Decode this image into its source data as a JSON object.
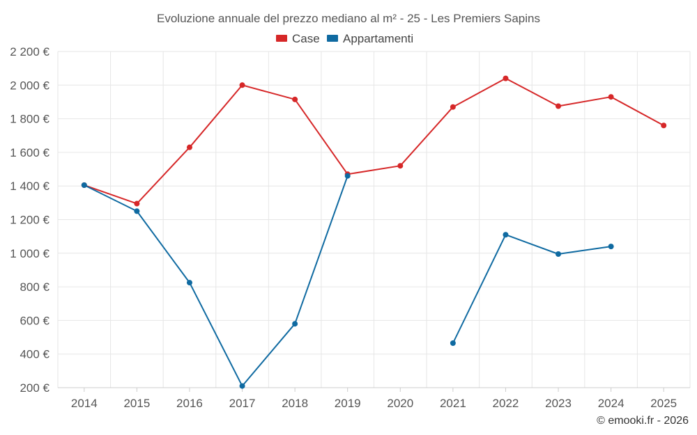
{
  "chart_data": {
    "type": "line",
    "title": "Evoluzione annuale del prezzo mediano al m² - 25 - Les Premiers Sapins",
    "xlabel": "",
    "ylabel": "",
    "categories": [
      "2014",
      "2015",
      "2016",
      "2017",
      "2018",
      "2019",
      "2020",
      "2021",
      "2022",
      "2023",
      "2024",
      "2025"
    ],
    "ylim": [
      200,
      2200
    ],
    "yticks": [
      200,
      400,
      600,
      800,
      1000,
      1200,
      1400,
      1600,
      1800,
      2000,
      2200
    ],
    "ytick_labels": [
      "200 €",
      "400 €",
      "600 €",
      "800 €",
      "1 000 €",
      "1 200 €",
      "1 400 €",
      "1 600 €",
      "1 800 €",
      "2 000 €",
      "2 200 €"
    ],
    "grid": true,
    "legend_position": "top-center",
    "series": [
      {
        "name": "Case",
        "color": "#d62728",
        "values": [
          1405,
          1295,
          1630,
          2000,
          1915,
          1470,
          1520,
          1870,
          2040,
          1875,
          1930,
          1760
        ]
      },
      {
        "name": "Appartamenti",
        "color": "#0f6aa1",
        "values": [
          1405,
          1250,
          825,
          210,
          580,
          1460,
          null,
          465,
          1110,
          995,
          1040,
          null
        ]
      }
    ]
  },
  "credit": "© emooki.fr - 2026"
}
